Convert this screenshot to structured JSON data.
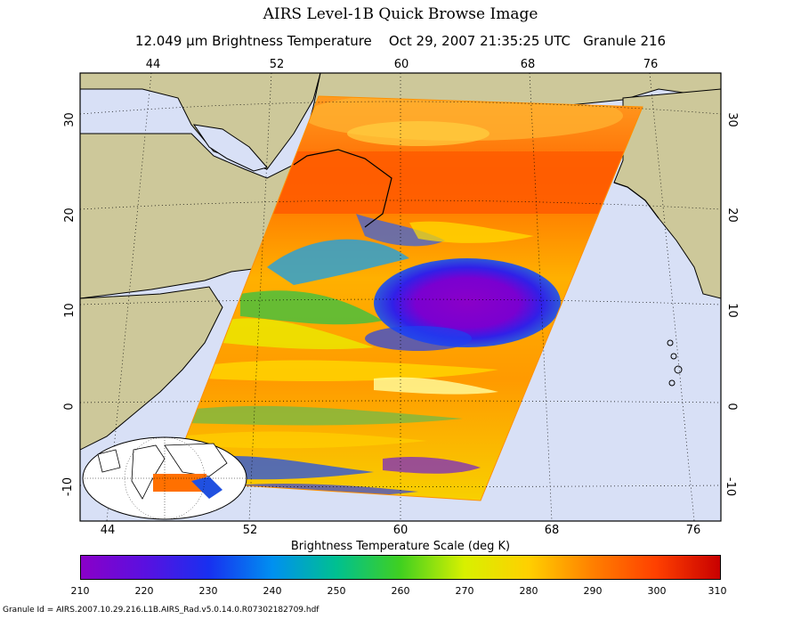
{
  "title": "AIRS Level-1B Quick Browse Image",
  "subtitle": "12.049 μm Brightness Temperature    Oct 29, 2007 21:35:25 UTC   Granule 216",
  "map": {
    "top_lon_labels": [
      "44",
      "52",
      "60",
      "68",
      "76"
    ],
    "bottom_lon_labels": [
      "44",
      "52",
      "60",
      "68",
      "76"
    ],
    "left_lat_labels": [
      "30",
      "20",
      "10",
      "0",
      "-10"
    ],
    "right_lat_labels": [
      "30",
      "20",
      "10",
      "0",
      "-10"
    ],
    "land_color": "#cdc89a",
    "ocean_color": "#d8e0f6"
  },
  "colorbar": {
    "title": "Brightness Temperature Scale (deg K)",
    "ticks": [
      "210",
      "220",
      "230",
      "240",
      "250",
      "260",
      "270",
      "280",
      "290",
      "300",
      "310"
    ],
    "colors": [
      "#8a00c8",
      "#5a10e0",
      "#1830f0",
      "#0090f0",
      "#00c090",
      "#40d020",
      "#d8f000",
      "#ffd000",
      "#ff8000",
      "#ff4000",
      "#c80000"
    ]
  },
  "footer": "Granule Id = AIRS.2007.10.29.216.L1B.AIRS_Rad.v5.0.14.0.R07302182709.hdf"
}
